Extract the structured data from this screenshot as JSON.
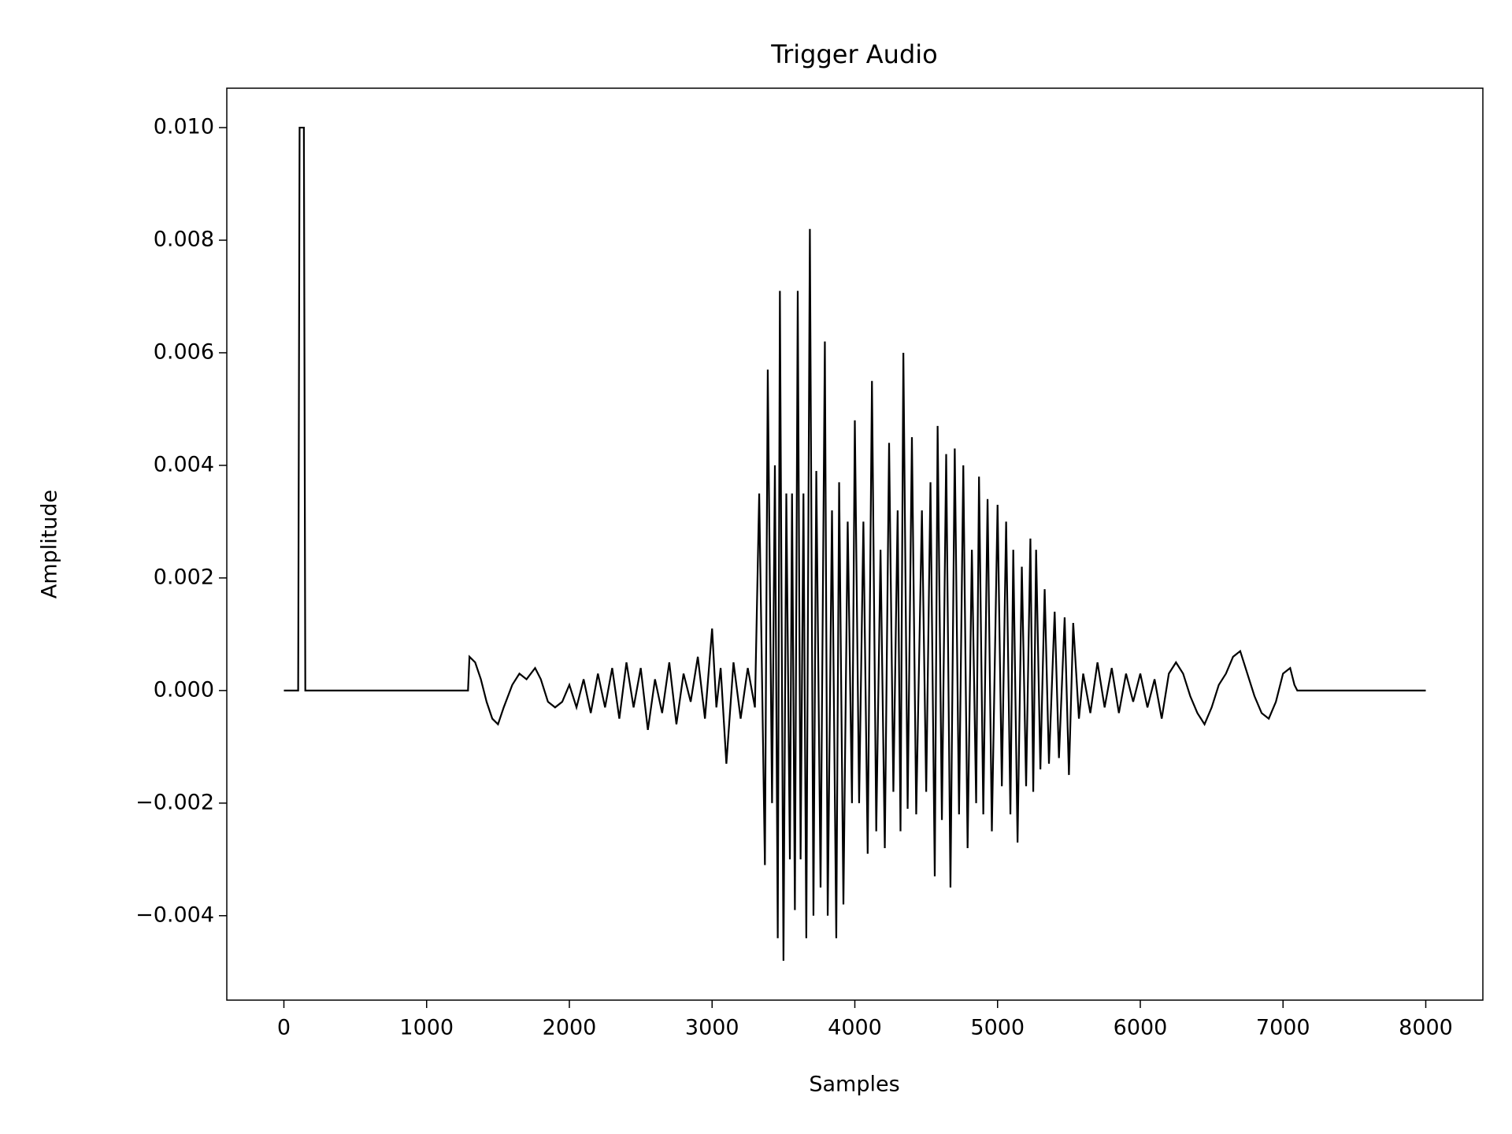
{
  "chart_data": {
    "type": "line",
    "title": "Trigger Audio",
    "x_label": "Samples",
    "y_label": "Amplitude",
    "xlim": [
      -400,
      8400
    ],
    "ylim": [
      -0.0055,
      0.0107
    ],
    "xticks": [
      0,
      1000,
      2000,
      3000,
      4000,
      5000,
      6000,
      7000,
      8000
    ],
    "yticks": [
      {
        "value": -0.004,
        "label": "−0.004"
      },
      {
        "value": -0.002,
        "label": "−0.002"
      },
      {
        "value": 0,
        "label": "0.000"
      },
      {
        "value": 0.002,
        "label": "0.002"
      },
      {
        "value": 0.004,
        "label": "0.004"
      },
      {
        "value": 0.006,
        "label": "0.006"
      },
      {
        "value": 0.008,
        "label": "0.008"
      },
      {
        "value": 0.01,
        "label": "0.010"
      }
    ],
    "grid": false,
    "series": [
      {
        "color": "#000000",
        "x": [
          0,
          100,
          110,
          140,
          150,
          1290,
          1300,
          1340,
          1380,
          1420,
          1460,
          1500,
          1540,
          1600,
          1650,
          1700,
          1760,
          1800,
          1850,
          1900,
          1950,
          2000,
          2050,
          2100,
          2150,
          2200,
          2250,
          2300,
          2350,
          2400,
          2450,
          2500,
          2550,
          2600,
          2650,
          2700,
          2750,
          2800,
          2850,
          2900,
          2950,
          3000,
          3030,
          3060,
          3100,
          3150,
          3200,
          3250,
          3300,
          3330,
          3370,
          3390,
          3420,
          3440,
          3460,
          3475,
          3500,
          3520,
          3545,
          3560,
          3580,
          3600,
          3620,
          3640,
          3660,
          3685,
          3710,
          3730,
          3760,
          3790,
          3810,
          3840,
          3870,
          3890,
          3920,
          3950,
          3980,
          4000,
          4030,
          4060,
          4090,
          4120,
          4150,
          4180,
          4210,
          4240,
          4270,
          4300,
          4320,
          4340,
          4370,
          4400,
          4430,
          4470,
          4500,
          4530,
          4560,
          4580,
          4610,
          4640,
          4670,
          4700,
          4730,
          4760,
          4790,
          4820,
          4850,
          4870,
          4900,
          4930,
          4960,
          5000,
          5030,
          5060,
          5090,
          5110,
          5140,
          5170,
          5200,
          5230,
          5250,
          5270,
          5300,
          5330,
          5360,
          5400,
          5430,
          5470,
          5500,
          5530,
          5570,
          5600,
          5650,
          5700,
          5750,
          5800,
          5850,
          5900,
          5950,
          6000,
          6050,
          6100,
          6150,
          6200,
          6250,
          6300,
          6350,
          6400,
          6450,
          6500,
          6550,
          6600,
          6650,
          6700,
          6750,
          6800,
          6850,
          6900,
          6950,
          7000,
          7050,
          7080,
          7100,
          8000
        ],
        "values": [
          0,
          0,
          0.01,
          0.01,
          0,
          0,
          0.0006,
          0.0005,
          0.0002,
          -0.0002,
          -0.0005,
          -0.0006,
          -0.0003,
          0.0001,
          0.0003,
          0.0002,
          0.0004,
          0.0002,
          -0.0002,
          -0.0003,
          -0.0002,
          0.0001,
          -0.0003,
          0.0002,
          -0.0004,
          0.0003,
          -0.0003,
          0.0004,
          -0.0005,
          0.0005,
          -0.0003,
          0.0004,
          -0.0007,
          0.0002,
          -0.0004,
          0.0005,
          -0.0006,
          0.0003,
          -0.0002,
          0.0006,
          -0.0005,
          0.0011,
          -0.0003,
          0.0004,
          -0.0013,
          0.0005,
          -0.0005,
          0.0004,
          -0.0003,
          0.0035,
          -0.0031,
          0.0057,
          -0.002,
          0.004,
          -0.0044,
          0.0071,
          -0.0048,
          0.0035,
          -0.003,
          0.0035,
          -0.0039,
          0.0071,
          -0.003,
          0.0035,
          -0.0044,
          0.0082,
          -0.004,
          0.0039,
          -0.0035,
          0.0062,
          -0.004,
          0.0032,
          -0.0044,
          0.0037,
          -0.0038,
          0.003,
          -0.002,
          0.0048,
          -0.002,
          0.003,
          -0.0029,
          0.0055,
          -0.0025,
          0.0025,
          -0.0028,
          0.0044,
          -0.0018,
          0.0032,
          -0.0025,
          0.006,
          -0.0021,
          0.0045,
          -0.0022,
          0.0032,
          -0.0018,
          0.0037,
          -0.0033,
          0.0047,
          -0.0023,
          0.0042,
          -0.0035,
          0.0043,
          -0.0022,
          0.004,
          -0.0028,
          0.0025,
          -0.002,
          0.0038,
          -0.0022,
          0.0034,
          -0.0025,
          0.0033,
          -0.0017,
          0.003,
          -0.0022,
          0.0025,
          -0.0027,
          0.0022,
          -0.0017,
          0.0027,
          -0.0018,
          0.0025,
          -0.0014,
          0.0018,
          -0.0013,
          0.0014,
          -0.0012,
          0.0013,
          -0.0015,
          0.0012,
          -0.0005,
          0.0003,
          -0.0004,
          0.0005,
          -0.0003,
          0.0004,
          -0.0004,
          0.0003,
          -0.0002,
          0.0003,
          -0.0003,
          0.0002,
          -0.0005,
          0.0003,
          0.0005,
          0.0003,
          -0.0001,
          -0.0004,
          -0.0006,
          -0.0003,
          0.0001,
          0.0003,
          0.0006,
          0.0007,
          0.0003,
          -0.0001,
          -0.0004,
          -0.0005,
          -0.0002,
          0.0003,
          0.0004,
          0.0001,
          0,
          0
        ]
      }
    ]
  }
}
